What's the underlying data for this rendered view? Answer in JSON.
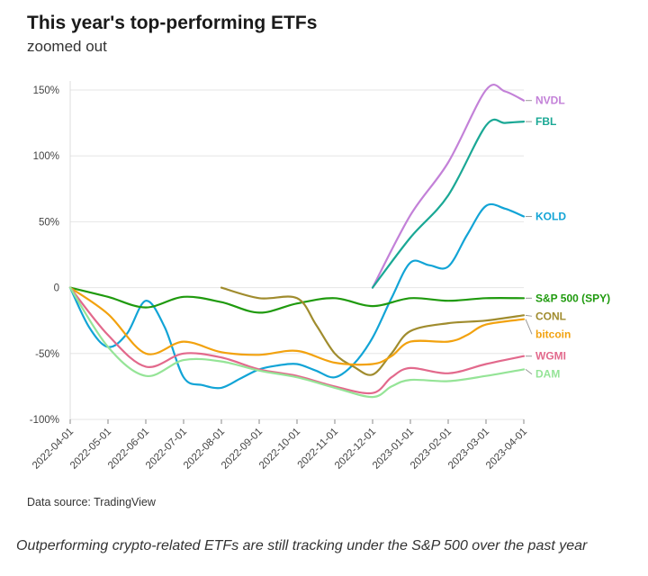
{
  "header": {
    "title": "This year's top-performing ETFs",
    "subtitle": "zoomed out"
  },
  "footer": {
    "source": "Data source: TradingView",
    "caption": "Outperforming crypto-related ETFs are still tracking under the S&P 500 over the past year"
  },
  "chart_data": {
    "type": "line",
    "title": "This year's top-performing ETFs",
    "subtitle": "zoomed out",
    "xlabel": "",
    "ylabel": "",
    "x_ticks": [
      "2022-04-01",
      "2022-05-01",
      "2022-06-01",
      "2022-07-01",
      "2022-08-01",
      "2022-09-01",
      "2022-10-01",
      "2022-11-01",
      "2022-12-01",
      "2023-01-01",
      "2023-02-01",
      "2023-03-01",
      "2023-04-01"
    ],
    "y_ticks": [
      150,
      100,
      50,
      0,
      -50,
      -100
    ],
    "y_tick_labels": [
      "150%",
      "100%",
      "50%",
      "0",
      "-50%",
      "-100%"
    ],
    "ylim": [
      -100,
      150
    ],
    "grid": "horizontal",
    "legend": "direct labels at right end of lines",
    "series": [
      {
        "name": "NVDL",
        "color": "#c381d8",
        "x": [
          8,
          9,
          10,
          11,
          11.5,
          12
        ],
        "values": [
          0,
          55,
          95,
          150,
          149,
          142
        ]
      },
      {
        "name": "FBL",
        "color": "#1aa895",
        "x": [
          8,
          9,
          10,
          11,
          11.5,
          12
        ],
        "values": [
          0,
          38,
          70,
          123,
          125,
          126
        ]
      },
      {
        "name": "KOLD",
        "color": "#12a4d6",
        "x": [
          0,
          0.5,
          1,
          1.5,
          2,
          2.5,
          3,
          3.5,
          4,
          4.5,
          5,
          5.5,
          6,
          6.5,
          7,
          7.5,
          8,
          8.5,
          9,
          9.5,
          10,
          10.5,
          11,
          11.5,
          12
        ],
        "values": [
          0,
          -30,
          -45,
          -35,
          -10,
          -30,
          -68,
          -74,
          -76,
          -69,
          -62,
          -59,
          -58,
          -63,
          -68,
          -58,
          -38,
          -8,
          19,
          17,
          16,
          40,
          62,
          60,
          54
        ]
      },
      {
        "name": "S&P 500 (SPY)",
        "color": "#1f9a0e",
        "x": [
          0,
          1,
          2,
          3,
          4,
          5,
          6,
          7,
          8,
          9,
          10,
          11,
          12
        ],
        "values": [
          0,
          -7,
          -15,
          -7,
          -11,
          -19,
          -12,
          -8,
          -14,
          -8,
          -10,
          -8,
          -8
        ]
      },
      {
        "name": "CONL",
        "color": "#a08c2e",
        "x": [
          4,
          5,
          6,
          6.5,
          7,
          7.5,
          8,
          8.5,
          9,
          10,
          11,
          12
        ],
        "values": [
          0,
          -8,
          -8,
          -28,
          -50,
          -60,
          -66,
          -50,
          -33,
          -27,
          -25,
          -21
        ]
      },
      {
        "name": "bitcoin",
        "color": "#f2a20f",
        "x": [
          0,
          1,
          2,
          3,
          4,
          5,
          6,
          7,
          8,
          8.5,
          9,
          10,
          10.5,
          11,
          12
        ],
        "values": [
          0,
          -20,
          -50,
          -41,
          -49,
          -51,
          -48,
          -57,
          -58,
          -52,
          -41,
          -41,
          -36,
          -28,
          -24
        ]
      },
      {
        "name": "WGMI",
        "color": "#e2698c",
        "x": [
          0,
          1,
          2,
          3,
          4,
          5,
          6,
          7,
          8,
          8.5,
          9,
          10,
          11,
          12
        ],
        "values": [
          0,
          -36,
          -60,
          -50,
          -53,
          -62,
          -67,
          -75,
          -80,
          -68,
          -61,
          -65,
          -58,
          -52
        ]
      },
      {
        "name": "DAM",
        "color": "#95e497",
        "x": [
          0,
          1,
          2,
          3,
          4,
          5,
          6,
          7,
          8,
          8.5,
          9,
          10,
          11,
          12
        ],
        "values": [
          0,
          -45,
          -67,
          -55,
          -56,
          -63,
          -68,
          -76,
          -83,
          -75,
          -70,
          -71,
          -67,
          -62
        ]
      }
    ]
  }
}
